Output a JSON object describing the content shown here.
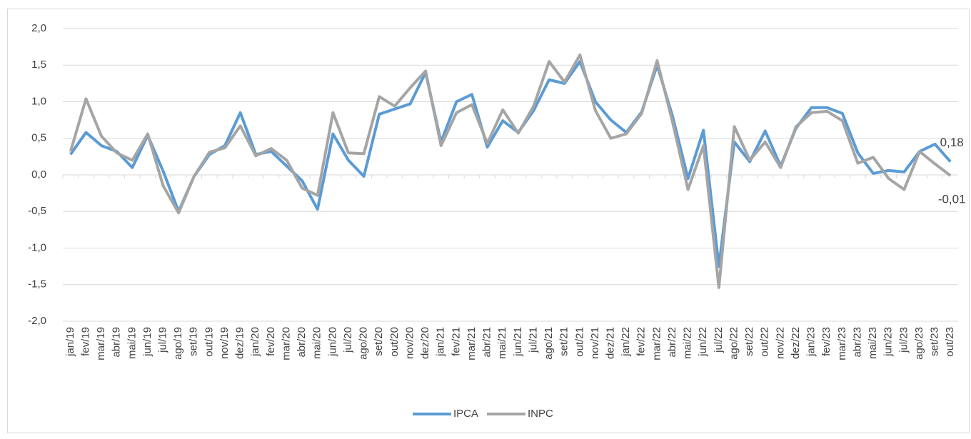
{
  "chart_data": {
    "type": "line",
    "categories": [
      "jan/19",
      "fev/19",
      "mar/19",
      "abr/19",
      "mai/19",
      "jun/19",
      "jul/19",
      "ago/19",
      "set/19",
      "out/19",
      "nov/19",
      "dez/19",
      "jan/20",
      "fev/20",
      "mar/20",
      "abr/20",
      "mai/20",
      "jun/20",
      "jul/20",
      "ago/20",
      "set/20",
      "out/20",
      "nov/20",
      "dez/20",
      "jan/21",
      "fev/21",
      "mar/21",
      "abr/21",
      "mai/21",
      "jun/21",
      "jul/21",
      "ago/21",
      "set/21",
      "out/21",
      "nov/21",
      "dez/21",
      "jan/22",
      "fev/22",
      "mar/22",
      "abr/22",
      "mai/22",
      "jun/22",
      "jul/22",
      "ago/22",
      "set/22",
      "out/22",
      "nov/22",
      "dez/22",
      "jan/23",
      "fev/23",
      "mar/23",
      "abr/23",
      "mai/23",
      "jun/23",
      "jul/23",
      "ago/23",
      "set/23",
      "out/23"
    ],
    "series": [
      {
        "name": "IPCA",
        "color": "#5b9bd5",
        "values": [
          0.28,
          0.58,
          0.4,
          0.32,
          0.1,
          0.54,
          0.05,
          -0.5,
          -0.02,
          0.28,
          0.4,
          0.85,
          0.28,
          0.32,
          0.12,
          -0.08,
          -0.47,
          0.56,
          0.2,
          -0.02,
          0.83,
          0.9,
          0.97,
          1.4,
          0.45,
          1.0,
          1.1,
          0.38,
          0.74,
          0.58,
          0.88,
          1.3,
          1.25,
          1.55,
          1.0,
          0.75,
          0.58,
          0.86,
          1.5,
          0.8,
          -0.05,
          0.61,
          -1.25,
          0.45,
          0.18,
          0.6,
          0.12,
          0.64,
          0.92,
          0.92,
          0.84,
          0.3,
          0.02,
          0.06,
          0.04,
          0.32,
          0.42,
          0.18
        ],
        "value_labels": {
          "57": "0,18"
        }
      },
      {
        "name": "INPC",
        "color": "#a5a5a5",
        "values": [
          0.32,
          1.04,
          0.53,
          0.3,
          0.2,
          0.56,
          -0.15,
          -0.52,
          -0.02,
          0.31,
          0.37,
          0.67,
          0.26,
          0.36,
          0.2,
          -0.18,
          -0.28,
          0.85,
          0.3,
          0.29,
          1.07,
          0.94,
          1.19,
          1.42,
          0.4,
          0.85,
          0.96,
          0.43,
          0.89,
          0.57,
          0.94,
          1.55,
          1.27,
          1.64,
          0.88,
          0.5,
          0.56,
          0.84,
          1.56,
          0.72,
          -0.2,
          0.4,
          -1.54,
          0.66,
          0.2,
          0.45,
          0.1,
          0.66,
          0.85,
          0.87,
          0.74,
          0.16,
          0.24,
          -0.05,
          -0.2,
          0.32,
          0.15,
          -0.01
        ],
        "value_labels": {
          "57": "-0,01"
        }
      }
    ],
    "ylim": [
      -2,
      2
    ],
    "yticks": [
      {
        "value": -2,
        "label": "-2,0"
      },
      {
        "value": -1.5,
        "label": "-1,5"
      },
      {
        "value": -1,
        "label": "-1,0"
      },
      {
        "value": -0.5,
        "label": "-0,5"
      },
      {
        "value": 0,
        "label": "0,0"
      },
      {
        "value": 0.5,
        "label": "0,5"
      },
      {
        "value": 1,
        "label": "1,0"
      },
      {
        "value": 1.5,
        "label": "1,5"
      },
      {
        "value": 2,
        "label": "2,0"
      }
    ],
    "grid": true,
    "legend": "bottom"
  }
}
